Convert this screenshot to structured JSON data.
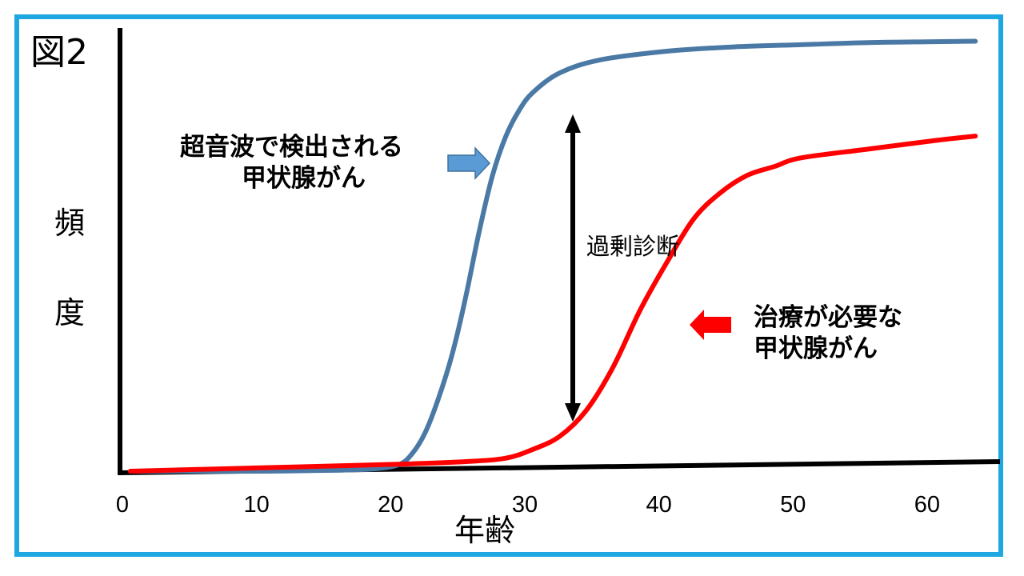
{
  "figure_label": "図2",
  "chart_data": {
    "type": "line",
    "title": "",
    "xlabel": "年齢",
    "ylabel": "頻度",
    "xlim": [
      0,
      64
    ],
    "x_ticks": [
      "0",
      "10",
      "20",
      "30",
      "40",
      "50",
      "60"
    ],
    "ylim": [
      0,
      1
    ],
    "series": [
      {
        "name": "超音波で検出される甲状腺がん",
        "color": "#4b79a5",
        "x": [
          0,
          5,
          10,
          15,
          18,
          20,
          21,
          22,
          23,
          24,
          25,
          26,
          27,
          28,
          29,
          30,
          32,
          35,
          40,
          45,
          50,
          55,
          60,
          63
        ],
        "y": [
          0.0,
          0.0,
          0.0,
          0.002,
          0.005,
          0.015,
          0.04,
          0.09,
          0.17,
          0.27,
          0.4,
          0.55,
          0.68,
          0.77,
          0.83,
          0.87,
          0.915,
          0.945,
          0.965,
          0.975,
          0.98,
          0.985,
          0.987,
          0.988
        ]
      },
      {
        "name": "治療が必要な甲状腺がん",
        "color": "#ff0000",
        "x": [
          0,
          5,
          10,
          15,
          20,
          25,
          28,
          30,
          32,
          34,
          36,
          38,
          40,
          42,
          44,
          46,
          48,
          50,
          55,
          60,
          63
        ],
        "y": [
          0.0,
          0.004,
          0.008,
          0.012,
          0.016,
          0.022,
          0.03,
          0.05,
          0.08,
          0.14,
          0.24,
          0.37,
          0.48,
          0.58,
          0.64,
          0.68,
          0.7,
          0.72,
          0.74,
          0.76,
          0.77
        ]
      }
    ],
    "annotations": {
      "upper_label": [
        "超音波で検出される",
        "甲状腺がん"
      ],
      "lower_label": [
        "治療が必要な",
        "甲状腺がん"
      ],
      "gap_label": "過剰診断"
    },
    "annotation_colors": {
      "upper_arrow": "#5b9bd5",
      "lower_arrow": "#ff0000",
      "gap_arrow": "#000000"
    },
    "grid": false,
    "legend": "none"
  },
  "frame_color": "#1ea7e1",
  "axis_color": "#000000"
}
